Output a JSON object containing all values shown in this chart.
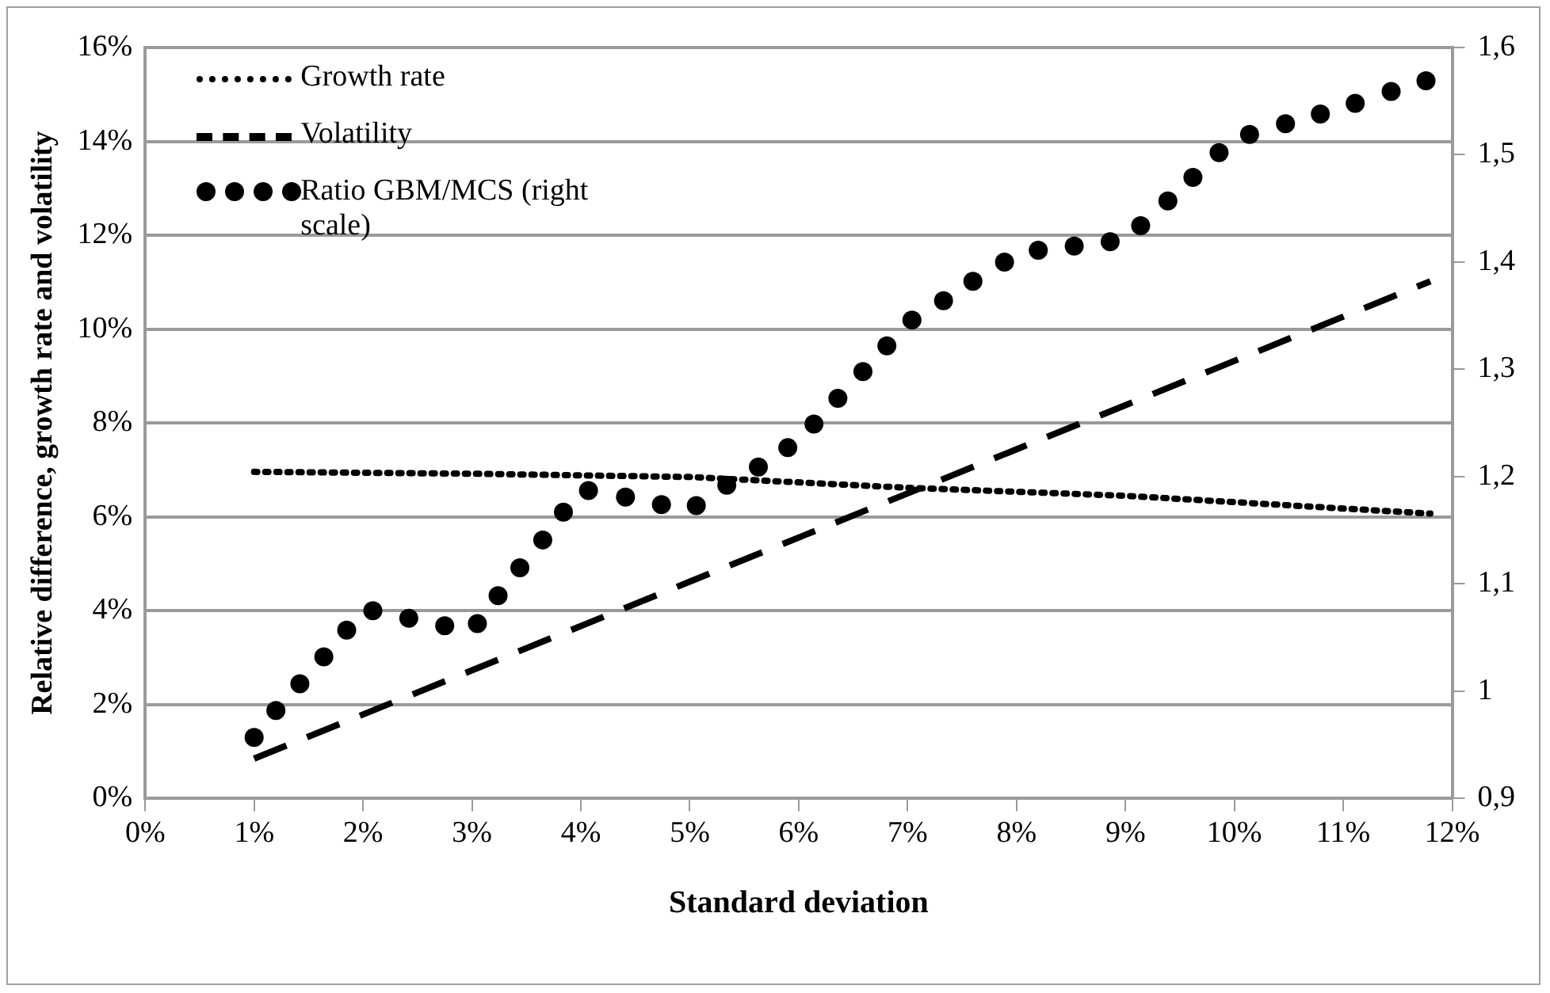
{
  "chart_data": {
    "type": "line",
    "xlabel": "Standard deviation",
    "ylabel": "Relative difference, growth rate and volatility",
    "xlim": [
      0,
      12
    ],
    "xticks": [
      {
        "value": 0,
        "label": "0%"
      },
      {
        "value": 1,
        "label": "1%"
      },
      {
        "value": 2,
        "label": "2%"
      },
      {
        "value": 3,
        "label": "3%"
      },
      {
        "value": 4,
        "label": "4%"
      },
      {
        "value": 5,
        "label": "5%"
      },
      {
        "value": 6,
        "label": "6%"
      },
      {
        "value": 7,
        "label": "7%"
      },
      {
        "value": 8,
        "label": "8%"
      },
      {
        "value": 9,
        "label": "9%"
      },
      {
        "value": 10,
        "label": "10%"
      },
      {
        "value": 11,
        "label": "11%"
      },
      {
        "value": 12,
        "label": "12%"
      }
    ],
    "ylim": [
      0,
      16
    ],
    "yticks": [
      {
        "value": 0,
        "label": "0%"
      },
      {
        "value": 2,
        "label": "2%"
      },
      {
        "value": 4,
        "label": "4%"
      },
      {
        "value": 6,
        "label": "6%"
      },
      {
        "value": 8,
        "label": "8%"
      },
      {
        "value": 10,
        "label": "10%"
      },
      {
        "value": 12,
        "label": "12%"
      },
      {
        "value": 14,
        "label": "14%"
      },
      {
        "value": 16,
        "label": "16%"
      }
    ],
    "y2lim": [
      0.9,
      1.6
    ],
    "y2ticks": [
      {
        "value": 0.9,
        "label": "0,9"
      },
      1,
      {
        "value": 1.1,
        "label": "1,1"
      },
      {
        "value": 1.2,
        "label": "1,2"
      },
      {
        "value": 1.3,
        "label": "1,3"
      },
      {
        "value": 1.4,
        "label": "1,4"
      },
      {
        "value": 1.5,
        "label": "1,5"
      },
      {
        "value": 1.6,
        "label": "1,6"
      }
    ],
    "grid": "y",
    "legend": "top left",
    "series": [
      {
        "name": "Growth rate",
        "color": "#000000",
        "line_style": "dotted",
        "marker": "none",
        "x": [
          1,
          3,
          5,
          7,
          9,
          11.8
        ],
        "values": [
          6.96,
          6.92,
          6.85,
          6.62,
          6.45,
          6.07
        ]
      },
      {
        "name": "Volatility",
        "color": "#000000",
        "line_style": "dashed",
        "marker": "none",
        "x": [
          1,
          3,
          5,
          7,
          9,
          11.8
        ],
        "values": [
          0.85,
          2.73,
          4.62,
          6.5,
          8.38,
          11.02
        ]
      },
      {
        "name": "Ratio GBM/MCS (right scale)",
        "color": "#000000",
        "type": "scatter",
        "axis": "y2",
        "marker": "circle",
        "x": [
          1.0,
          1.2,
          1.42,
          1.64,
          1.85,
          2.09,
          2.42,
          2.75,
          3.05,
          3.24,
          3.44,
          3.65,
          3.84,
          4.07,
          4.41,
          4.74,
          5.06,
          5.34,
          5.63,
          5.9,
          6.14,
          6.36,
          6.59,
          6.81,
          7.04,
          7.33,
          7.6,
          7.89,
          8.2,
          8.53,
          8.86,
          9.14,
          9.39,
          9.62,
          9.86,
          10.14,
          10.47,
          10.79,
          11.11,
          11.44,
          11.76
        ],
        "values": [
          0.957,
          0.982,
          1.007,
          1.032,
          1.057,
          1.075,
          1.068,
          1.061,
          1.063,
          1.089,
          1.115,
          1.141,
          1.167,
          1.187,
          1.181,
          1.174,
          1.173,
          1.192,
          1.209,
          1.227,
          1.249,
          1.273,
          1.298,
          1.322,
          1.346,
          1.364,
          1.382,
          1.4,
          1.411,
          1.415,
          1.419,
          1.434,
          1.457,
          1.479,
          1.502,
          1.519,
          1.529,
          1.538,
          1.548,
          1.559,
          1.569
        ]
      }
    ]
  }
}
